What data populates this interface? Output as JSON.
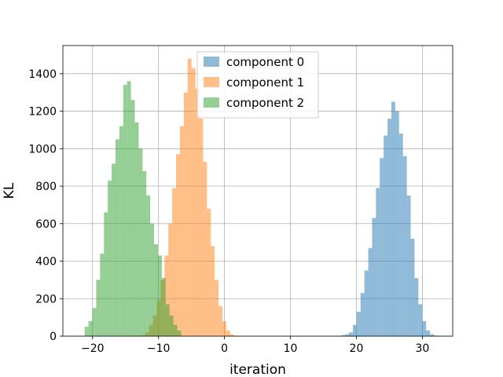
{
  "chart_data": {
    "type": "bar",
    "title": "",
    "xlabel": "iteration",
    "ylabel": "KL",
    "xlim": [
      -24.5,
      34.6
    ],
    "ylim": [
      0,
      1550
    ],
    "x_ticks": [
      -20,
      -10,
      0,
      10,
      20,
      30
    ],
    "y_ticks": [
      0,
      200,
      400,
      600,
      800,
      1000,
      1200,
      1400
    ],
    "grid": true,
    "legend_position": "top-center",
    "bin_width": 0.585,
    "bar_opacity": 0.5,
    "series": [
      {
        "name": "component 0",
        "color": "#1f77b4",
        "x_start": 17.7,
        "values": [
          5,
          10,
          20,
          60,
          130,
          230,
          350,
          470,
          630,
          790,
          950,
          1070,
          1160,
          1250,
          1200,
          1080,
          960,
          750,
          520,
          310,
          170,
          80,
          30,
          10,
          3
        ]
      },
      {
        "name": "component 1",
        "color": "#ff7f0e",
        "x_start": -12.6,
        "values": [
          5,
          20,
          60,
          110,
          190,
          300,
          430,
          600,
          790,
          970,
          1120,
          1300,
          1480,
          1430,
          1320,
          1160,
          930,
          680,
          480,
          300,
          160,
          80,
          30,
          10,
          3
        ]
      },
      {
        "name": "component 2",
        "color": "#2ca02c",
        "x_start": -21.2,
        "values": [
          50,
          80,
          150,
          300,
          440,
          660,
          830,
          920,
          1050,
          1120,
          1340,
          1360,
          1260,
          1140,
          1000,
          880,
          750,
          600,
          490,
          430,
          310,
          170,
          110,
          60,
          30
        ]
      }
    ]
  }
}
